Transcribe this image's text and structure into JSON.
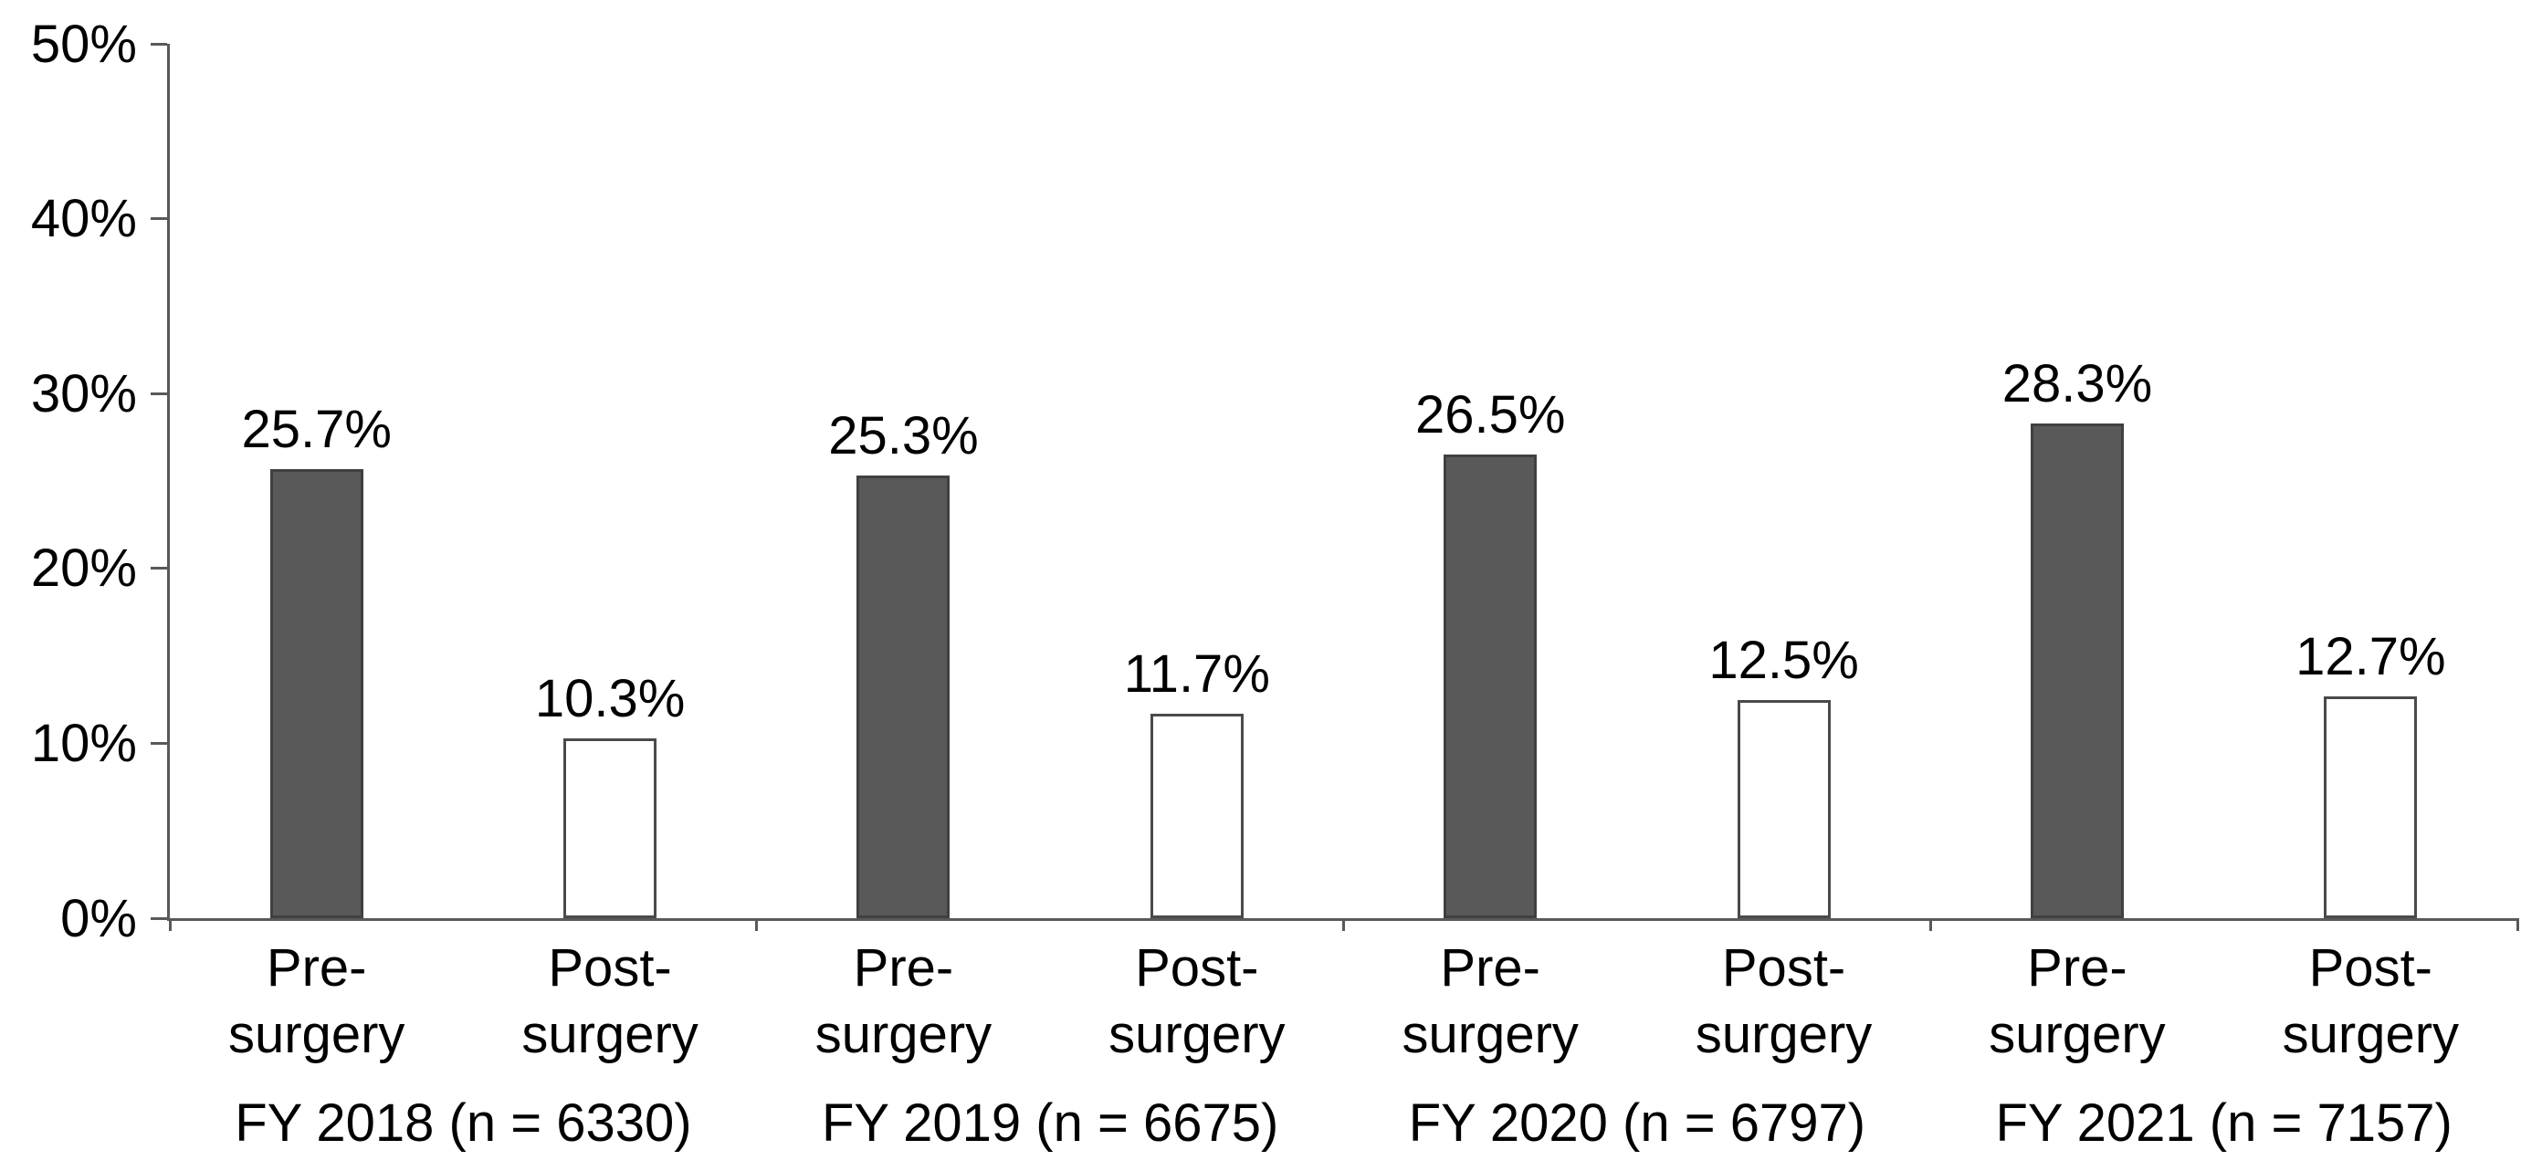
{
  "chart_data": {
    "type": "bar",
    "title": "",
    "xlabel": "",
    "ylabel": "",
    "ylim": [
      0,
      50
    ],
    "grid": false,
    "legend": "none",
    "y_axis": {
      "ticks": [
        {
          "value": 0,
          "label": "0%"
        },
        {
          "value": 10,
          "label": "10%"
        },
        {
          "value": 20,
          "label": "20%"
        },
        {
          "value": 30,
          "label": "30%"
        },
        {
          "value": 40,
          "label": "40%"
        },
        {
          "value": 50,
          "label": "50%"
        }
      ]
    },
    "series_names": [
      "Pre-surgery",
      "Post-surgery"
    ],
    "groups": [
      {
        "category": "FY 2018 (n = 6330)",
        "bars": [
          {
            "series": "Pre-surgery",
            "xlabel_line1": "Pre-",
            "xlabel_line2": "surgery",
            "value": 25.7,
            "label": "25.7%",
            "style": "dark"
          },
          {
            "series": "Post-surgery",
            "xlabel_line1": "Post-",
            "xlabel_line2": "surgery",
            "value": 10.3,
            "label": "10.3%",
            "style": "white"
          }
        ]
      },
      {
        "category": "FY 2019 (n = 6675)",
        "bars": [
          {
            "series": "Pre-surgery",
            "xlabel_line1": "Pre-",
            "xlabel_line2": "surgery",
            "value": 25.3,
            "label": "25.3%",
            "style": "dark"
          },
          {
            "series": "Post-surgery",
            "xlabel_line1": "Post-",
            "xlabel_line2": "surgery",
            "value": 11.7,
            "label": "11.7%",
            "style": "white"
          }
        ]
      },
      {
        "category": "FY 2020 (n = 6797)",
        "bars": [
          {
            "series": "Pre-surgery",
            "xlabel_line1": "Pre-",
            "xlabel_line2": "surgery",
            "value": 26.5,
            "label": "26.5%",
            "style": "dark"
          },
          {
            "series": "Post-surgery",
            "xlabel_line1": "Post-",
            "xlabel_line2": "surgery",
            "value": 12.5,
            "label": "12.5%",
            "style": "white"
          }
        ]
      },
      {
        "category": "FY 2021 (n = 7157)",
        "bars": [
          {
            "series": "Pre-surgery",
            "xlabel_line1": "Pre-",
            "xlabel_line2": "surgery",
            "value": 28.3,
            "label": "28.3%",
            "style": "dark"
          },
          {
            "series": "Post-surgery",
            "xlabel_line1": "Post-",
            "xlabel_line2": "surgery",
            "value": 12.7,
            "label": "12.7%",
            "style": "white"
          }
        ]
      }
    ],
    "colors": {
      "pre_surgery_fill": "#595959",
      "pre_surgery_border": "#404040",
      "post_surgery_fill": "#ffffff",
      "post_surgery_border": "#4a4a4a",
      "axis": "#595959",
      "text": "#000000"
    }
  }
}
